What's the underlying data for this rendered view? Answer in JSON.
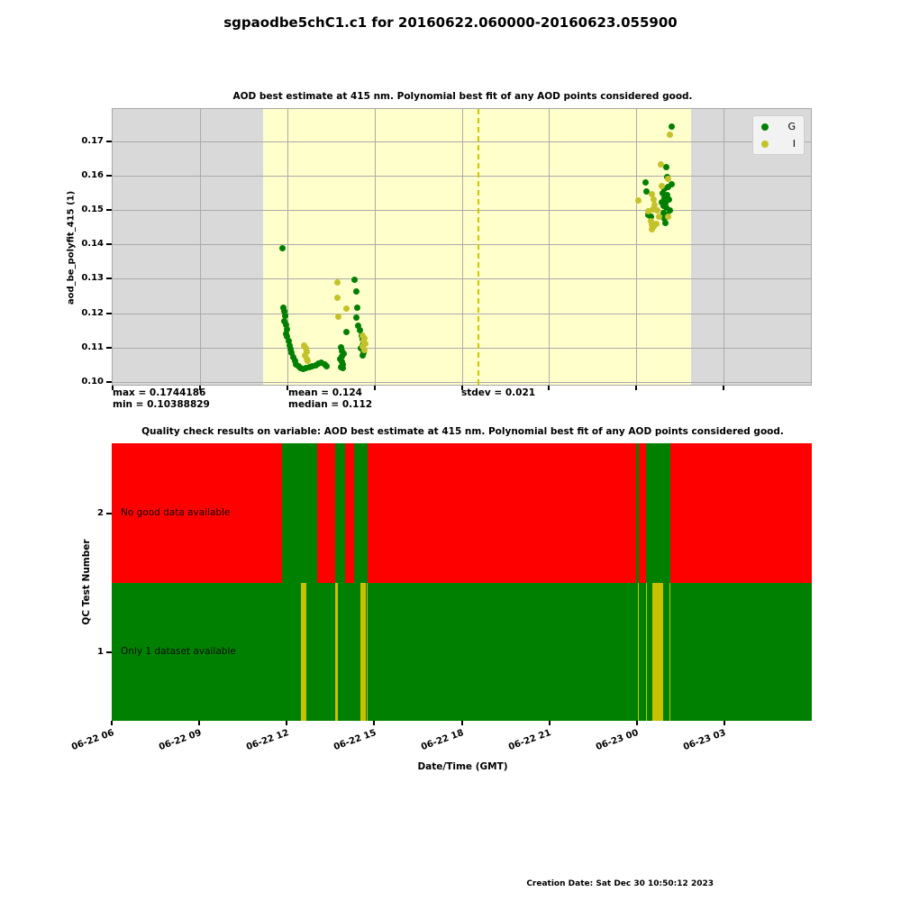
{
  "page": {
    "title": "sgpaodbe5chC1.c1 for 20160622.060000-20160623.055900",
    "creation_date": "Creation Date: Sat Dec 30 10:50:12 2023"
  },
  "colors": {
    "night_band": "#d9d9d9",
    "day_band": "#ffffcc",
    "grid": "#aaaaaa",
    "dashed_line": "#c9c900",
    "point_g": "#008000",
    "point_i": "#c3c22a",
    "qc_pass": "#008000",
    "qc_fail": "#ff0000",
    "qc_indeterminate": "#c8c000"
  },
  "aod_chart": {
    "title": "AOD best estimate at 415 nm. Polynomial best fit of any AOD points considered good.",
    "ylabel": "aod_be_polyfit_415 (1)",
    "yticks": [
      "0.10",
      "0.11",
      "0.12",
      "0.13",
      "0.14",
      "0.15",
      "0.16",
      "0.17"
    ],
    "stats": {
      "max": "max = 0.1744186",
      "min": "min = 0.10388829",
      "mean": "mean = 0.124",
      "median": "median = 0.112",
      "stdev": "stdev = 0.021"
    },
    "legend": [
      {
        "label": "G",
        "color": "#008000"
      },
      {
        "label": "I",
        "color": "#c3c22a"
      }
    ]
  },
  "qc_chart": {
    "title": "Quality check results on variable: AOD best estimate at 415 nm. Polynomial best fit of any AOD points considered good.",
    "ylabel": "QC Test Number",
    "xlabel": "Date/Time (GMT)",
    "rows": [
      {
        "tick": "2",
        "label": "No good data available"
      },
      {
        "tick": "1",
        "label": "Only 1 dataset available"
      }
    ]
  },
  "chart_data": [
    {
      "type": "scatter",
      "title": "AOD best estimate at 415 nm. Polynomial best fit of any AOD points considered good.",
      "ylabel": "aod_be_polyfit_415 (1)",
      "x_unit": "hours GMT since 2016-06-22 00:00 (axis spans 06:00 to 30:00 = next-day 06:00)",
      "xlim_hours": [
        6,
        30
      ],
      "ylim": [
        0.0992,
        0.1794
      ],
      "ytick_values": [
        0.1,
        0.11,
        0.12,
        0.13,
        0.14,
        0.15,
        0.16,
        0.17
      ],
      "xtick_hours": [
        6,
        9,
        12,
        15,
        18,
        21,
        24,
        27
      ],
      "grid": true,
      "day_shading_hours": [
        11.17,
        25.89
      ],
      "dashed_line_hour": 18.53,
      "stats": {
        "max": 0.1744186,
        "min": 0.10388829,
        "mean": 0.124,
        "median": 0.112,
        "stdev": 0.021
      },
      "series": [
        {
          "name": "G",
          "color": "#008000",
          "points": [
            [
              11.85,
              0.139
            ],
            [
              11.88,
              0.1215
            ],
            [
              11.9,
              0.1205
            ],
            [
              11.93,
              0.1192
            ],
            [
              11.9,
              0.1178
            ],
            [
              11.96,
              0.1166
            ],
            [
              12.0,
              0.1152
            ],
            [
              11.95,
              0.1141
            ],
            [
              12.0,
              0.1131
            ],
            [
              12.05,
              0.1118
            ],
            [
              12.09,
              0.1107
            ],
            [
              12.13,
              0.1096
            ],
            [
              12.16,
              0.1085
            ],
            [
              12.2,
              0.1072
            ],
            [
              12.26,
              0.1061
            ],
            [
              12.31,
              0.1052
            ],
            [
              12.38,
              0.1045
            ],
            [
              12.46,
              0.1041
            ],
            [
              12.55,
              0.1039
            ],
            [
              12.65,
              0.104
            ],
            [
              12.76,
              0.1042
            ],
            [
              12.87,
              0.1045
            ],
            [
              12.98,
              0.1049
            ],
            [
              13.08,
              0.1053
            ],
            [
              13.17,
              0.1056
            ],
            [
              13.28,
              0.1052
            ],
            [
              13.37,
              0.1047
            ],
            [
              13.84,
              0.11
            ],
            [
              13.89,
              0.1091
            ],
            [
              13.94,
              0.1083
            ],
            [
              13.87,
              0.1075
            ],
            [
              13.82,
              0.1068
            ],
            [
              13.88,
              0.106
            ],
            [
              13.92,
              0.1051
            ],
            [
              13.86,
              0.1044
            ],
            [
              13.91,
              0.104
            ],
            [
              14.05,
              0.1145
            ],
            [
              14.32,
              0.1297
            ],
            [
              14.38,
              0.1262
            ],
            [
              14.41,
              0.1216
            ],
            [
              14.39,
              0.1186
            ],
            [
              14.45,
              0.1164
            ],
            [
              14.49,
              0.115
            ],
            [
              14.55,
              0.1136
            ],
            [
              14.6,
              0.1125
            ],
            [
              14.63,
              0.1114
            ],
            [
              14.58,
              0.1105
            ],
            [
              14.53,
              0.1099
            ],
            [
              14.61,
              0.1092
            ],
            [
              14.63,
              0.1084
            ],
            [
              14.59,
              0.1078
            ],
            [
              25.2,
              0.1744
            ],
            [
              25.02,
              0.1624
            ],
            [
              25.06,
              0.1597
            ],
            [
              24.31,
              0.1581
            ],
            [
              25.21,
              0.1576
            ],
            [
              25.1,
              0.1568
            ],
            [
              24.98,
              0.1561
            ],
            [
              24.36,
              0.1554
            ],
            [
              24.92,
              0.1549
            ],
            [
              25.07,
              0.1544
            ],
            [
              24.97,
              0.1536
            ],
            [
              25.13,
              0.153
            ],
            [
              24.89,
              0.1524
            ],
            [
              25.01,
              0.1519
            ],
            [
              24.93,
              0.1512
            ],
            [
              25.04,
              0.1506
            ],
            [
              25.15,
              0.15
            ],
            [
              24.94,
              0.1492
            ],
            [
              25.06,
              0.1486
            ],
            [
              24.51,
              0.1481
            ],
            [
              24.98,
              0.1476
            ],
            [
              25.0,
              0.1463
            ],
            [
              24.41,
              0.1485
            ]
          ]
        },
        {
          "name": "I",
          "color": "#c3c22a",
          "points": [
            [
              12.59,
              0.1106
            ],
            [
              12.63,
              0.1097
            ],
            [
              12.66,
              0.1088
            ],
            [
              12.61,
              0.1078
            ],
            [
              12.66,
              0.1068
            ],
            [
              12.69,
              0.1061
            ],
            [
              13.73,
              0.129
            ],
            [
              13.73,
              0.1246
            ],
            [
              14.04,
              0.1214
            ],
            [
              13.76,
              0.119
            ],
            [
              14.6,
              0.1134
            ],
            [
              14.66,
              0.1126
            ],
            [
              14.62,
              0.1118
            ],
            [
              14.68,
              0.1111
            ],
            [
              14.59,
              0.1104
            ],
            [
              14.67,
              0.1094
            ],
            [
              25.14,
              0.172
            ],
            [
              24.85,
              0.1632
            ],
            [
              25.09,
              0.1591
            ],
            [
              24.87,
              0.1571
            ],
            [
              24.54,
              0.1547
            ],
            [
              24.06,
              0.1529
            ],
            [
              24.61,
              0.153
            ],
            [
              24.64,
              0.1514
            ],
            [
              24.55,
              0.1503
            ],
            [
              24.71,
              0.15
            ],
            [
              24.77,
              0.148
            ],
            [
              25.1,
              0.1481
            ],
            [
              24.4,
              0.1497
            ],
            [
              24.49,
              0.1468
            ],
            [
              24.69,
              0.1461
            ],
            [
              24.59,
              0.1452
            ],
            [
              24.52,
              0.1456
            ],
            [
              24.53,
              0.1444
            ]
          ]
        }
      ]
    },
    {
      "type": "qc_timeline",
      "title": "Quality check results on variable: AOD best estimate at 415 nm. Polynomial best fit of any AOD points considered good.",
      "ylabel": "QC Test Number",
      "xlabel": "Date/Time (GMT)",
      "xlim_hours": [
        6,
        30
      ],
      "xticks": [
        {
          "hour": 6,
          "label": "06-22 06"
        },
        {
          "hour": 9,
          "label": "06-22 09"
        },
        {
          "hour": 12,
          "label": "06-22 12"
        },
        {
          "hour": 15,
          "label": "06-22 15"
        },
        {
          "hour": 18,
          "label": "06-22 18"
        },
        {
          "hour": 21,
          "label": "06-22 21"
        },
        {
          "hour": 24,
          "label": "06-23 00"
        },
        {
          "hour": 27,
          "label": "06-23 03"
        }
      ],
      "state_colors": {
        "pass": "#008000",
        "fail": "#ff0000",
        "ind": "#c8c000"
      },
      "rows": [
        {
          "test_number": 2,
          "label": "No good data available",
          "segments": [
            [
              6.0,
              11.85,
              "fail"
            ],
            [
              11.85,
              13.05,
              "pass"
            ],
            [
              13.05,
              13.67,
              "fail"
            ],
            [
              13.67,
              14.01,
              "pass"
            ],
            [
              14.01,
              14.32,
              "fail"
            ],
            [
              14.32,
              14.78,
              "pass"
            ],
            [
              14.78,
              23.97,
              "fail"
            ],
            [
              23.97,
              24.06,
              "pass"
            ],
            [
              24.06,
              24.31,
              "fail"
            ],
            [
              24.31,
              25.14,
              "pass"
            ],
            [
              25.14,
              30.0,
              "fail"
            ]
          ]
        },
        {
          "test_number": 1,
          "label": "Only 1 dataset available",
          "segments": [
            [
              6.0,
              12.5,
              "pass"
            ],
            [
              12.5,
              12.68,
              "ind"
            ],
            [
              12.68,
              13.67,
              "pass"
            ],
            [
              13.67,
              13.76,
              "ind"
            ],
            [
              13.76,
              14.51,
              "pass"
            ],
            [
              14.51,
              14.72,
              "ind"
            ],
            [
              14.72,
              14.75,
              "pass"
            ],
            [
              14.75,
              14.78,
              "ind"
            ],
            [
              14.78,
              24.03,
              "pass"
            ],
            [
              24.03,
              24.06,
              "ind"
            ],
            [
              24.06,
              24.31,
              "pass"
            ],
            [
              24.31,
              24.34,
              "ind"
            ],
            [
              24.34,
              24.53,
              "pass"
            ],
            [
              24.53,
              24.9,
              "ind"
            ],
            [
              24.9,
              25.11,
              "pass"
            ],
            [
              25.11,
              25.14,
              "ind"
            ],
            [
              25.14,
              30.0,
              "pass"
            ]
          ]
        }
      ]
    }
  ]
}
